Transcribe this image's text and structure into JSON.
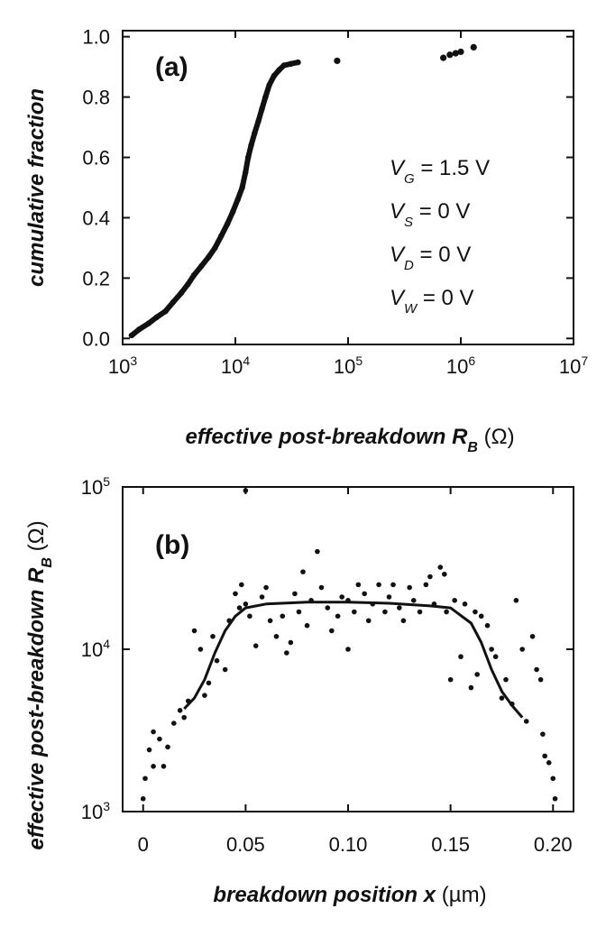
{
  "chart_data": [
    {
      "panel_label": "(a)",
      "type": "scatter",
      "xscale": "log",
      "xlim": [
        1000,
        10000000
      ],
      "ylim": [
        -0.02,
        1.02
      ],
      "xticks": [
        1000,
        10000,
        100000,
        1000000,
        10000000
      ],
      "xtick_labels": [
        {
          "base": "10",
          "exp": "3"
        },
        {
          "base": "10",
          "exp": "4"
        },
        {
          "base": "10",
          "exp": "5"
        },
        {
          "base": "10",
          "exp": "6"
        },
        {
          "base": "10",
          "exp": "7"
        }
      ],
      "yticks": [
        0.0,
        0.2,
        0.4,
        0.6,
        0.8,
        1.0
      ],
      "ytick_labels": [
        "0.0",
        "0.2",
        "0.4",
        "0.6",
        "0.8",
        "1.0"
      ],
      "xlabel": {
        "main": "effective post-breakdown R",
        "sub": "B",
        "unit": " (Ω)"
      },
      "ylabel": "cumulative fraction",
      "grid": false,
      "annotations": [
        {
          "main": "V",
          "sub": "G",
          "rest": " = 1.5 V"
        },
        {
          "main": "V",
          "sub": "S",
          "rest": " = 0 V"
        },
        {
          "main": "V",
          "sub": "D",
          "rest": " = 0 V"
        },
        {
          "main": "V",
          "sub": "W",
          "rest": " = 0 V"
        }
      ],
      "curve": [
        [
          1200,
          0.01
        ],
        [
          1400,
          0.03
        ],
        [
          1700,
          0.05
        ],
        [
          2000,
          0.07
        ],
        [
          2400,
          0.09
        ],
        [
          2800,
          0.12
        ],
        [
          3300,
          0.15
        ],
        [
          3800,
          0.18
        ],
        [
          4300,
          0.21
        ],
        [
          5000,
          0.24
        ],
        [
          5800,
          0.27
        ],
        [
          6600,
          0.3
        ],
        [
          7500,
          0.34
        ],
        [
          8500,
          0.38
        ],
        [
          9500,
          0.42
        ],
        [
          10500,
          0.46
        ],
        [
          11500,
          0.5
        ],
        [
          12300,
          0.55
        ],
        [
          13000,
          0.6
        ],
        [
          13800,
          0.64
        ],
        [
          14800,
          0.68
        ],
        [
          16000,
          0.72
        ],
        [
          17200,
          0.76
        ],
        [
          18500,
          0.8
        ],
        [
          20000,
          0.84
        ],
        [
          22000,
          0.87
        ],
        [
          24500,
          0.89
        ],
        [
          27000,
          0.905
        ],
        [
          31000,
          0.91
        ],
        [
          36000,
          0.915
        ]
      ],
      "points": [
        [
          80000,
          0.92
        ],
        [
          700000,
          0.93
        ],
        [
          800000,
          0.94
        ],
        [
          900000,
          0.945
        ],
        [
          1000000,
          0.95
        ],
        [
          1300000,
          0.965
        ]
      ]
    },
    {
      "panel_label": "(b)",
      "type": "scatter",
      "yscale": "log",
      "xlim": [
        -0.01,
        0.21
      ],
      "ylim": [
        1000,
        100000
      ],
      "xticks": [
        0,
        0.05,
        0.1,
        0.15,
        0.2
      ],
      "xtick_labels": [
        "0",
        "0.05",
        "0.10",
        "0.15",
        "0.20"
      ],
      "yticks": [
        1000,
        10000,
        100000
      ],
      "ytick_labels": [
        {
          "base": "10",
          "exp": "3"
        },
        {
          "base": "10",
          "exp": "4"
        },
        {
          "base": "10",
          "exp": "5"
        }
      ],
      "xlabel": {
        "main": "breakdown position ",
        "var": "x",
        "unit": " (µm)"
      },
      "ylabel": {
        "main": "effective post-breakdown R",
        "sub": "B",
        "unit": " (Ω)"
      },
      "grid": false,
      "fit_curve": [
        [
          0.02,
          4300
        ],
        [
          0.025,
          5000
        ],
        [
          0.03,
          6500
        ],
        [
          0.035,
          9500
        ],
        [
          0.04,
          13000
        ],
        [
          0.045,
          16000
        ],
        [
          0.05,
          18000
        ],
        [
          0.06,
          19000
        ],
        [
          0.08,
          19500
        ],
        [
          0.1,
          19500
        ],
        [
          0.12,
          19200
        ],
        [
          0.14,
          18500
        ],
        [
          0.15,
          18000
        ],
        [
          0.16,
          14500
        ],
        [
          0.165,
          11000
        ],
        [
          0.17,
          7500
        ],
        [
          0.175,
          5500
        ],
        [
          0.18,
          4500
        ],
        [
          0.185,
          3800
        ]
      ],
      "points": [
        [
          0.0,
          1200
        ],
        [
          0.001,
          1600
        ],
        [
          0.003,
          2400
        ],
        [
          0.005,
          3100
        ],
        [
          0.005,
          1900
        ],
        [
          0.008,
          2800
        ],
        [
          0.01,
          1900
        ],
        [
          0.012,
          2500
        ],
        [
          0.015,
          3500
        ],
        [
          0.018,
          4200
        ],
        [
          0.02,
          3800
        ],
        [
          0.022,
          4800
        ],
        [
          0.025,
          13000
        ],
        [
          0.028,
          10000
        ],
        [
          0.03,
          5200
        ],
        [
          0.032,
          6200
        ],
        [
          0.034,
          12000
        ],
        [
          0.036,
          8500
        ],
        [
          0.04,
          7500
        ],
        [
          0.042,
          15000
        ],
        [
          0.045,
          22000
        ],
        [
          0.047,
          18000
        ],
        [
          0.048,
          25000
        ],
        [
          0.05,
          19000
        ],
        [
          0.05,
          95000
        ],
        [
          0.052,
          16000
        ],
        [
          0.055,
          10500
        ],
        [
          0.058,
          21000
        ],
        [
          0.06,
          24000
        ],
        [
          0.062,
          15000
        ],
        [
          0.065,
          12000
        ],
        [
          0.068,
          16000
        ],
        [
          0.07,
          9500
        ],
        [
          0.072,
          11000
        ],
        [
          0.074,
          22000
        ],
        [
          0.076,
          17000
        ],
        [
          0.078,
          30000
        ],
        [
          0.08,
          14000
        ],
        [
          0.082,
          20000
        ],
        [
          0.085,
          40000
        ],
        [
          0.087,
          24000
        ],
        [
          0.09,
          18000
        ],
        [
          0.092,
          13000
        ],
        [
          0.095,
          16000
        ],
        [
          0.097,
          21000
        ],
        [
          0.1,
          10000
        ],
        [
          0.1,
          20000
        ],
        [
          0.103,
          17000
        ],
        [
          0.105,
          25000
        ],
        [
          0.108,
          22000
        ],
        [
          0.11,
          15000
        ],
        [
          0.112,
          19000
        ],
        [
          0.115,
          25000
        ],
        [
          0.118,
          17000
        ],
        [
          0.12,
          21000
        ],
        [
          0.122,
          25000
        ],
        [
          0.125,
          18000
        ],
        [
          0.127,
          15000
        ],
        [
          0.13,
          24000
        ],
        [
          0.132,
          20000
        ],
        [
          0.135,
          17000
        ],
        [
          0.138,
          25000
        ],
        [
          0.14,
          28000
        ],
        [
          0.142,
          19000
        ],
        [
          0.145,
          32000
        ],
        [
          0.147,
          29000
        ],
        [
          0.148,
          17000
        ],
        [
          0.15,
          6500
        ],
        [
          0.152,
          20000
        ],
        [
          0.155,
          9000
        ],
        [
          0.157,
          19000
        ],
        [
          0.16,
          5800
        ],
        [
          0.162,
          17000
        ],
        [
          0.163,
          7000
        ],
        [
          0.165,
          16000
        ],
        [
          0.168,
          14000
        ],
        [
          0.17,
          10000
        ],
        [
          0.172,
          9000
        ],
        [
          0.175,
          5000
        ],
        [
          0.177,
          6500
        ],
        [
          0.18,
          4600
        ],
        [
          0.182,
          20000
        ],
        [
          0.185,
          10000
        ],
        [
          0.187,
          3600
        ],
        [
          0.19,
          12000
        ],
        [
          0.192,
          7500
        ],
        [
          0.194,
          6500
        ],
        [
          0.195,
          3000
        ],
        [
          0.196,
          2200
        ],
        [
          0.198,
          2000
        ],
        [
          0.2,
          1600
        ],
        [
          0.201,
          1200
        ]
      ]
    }
  ]
}
